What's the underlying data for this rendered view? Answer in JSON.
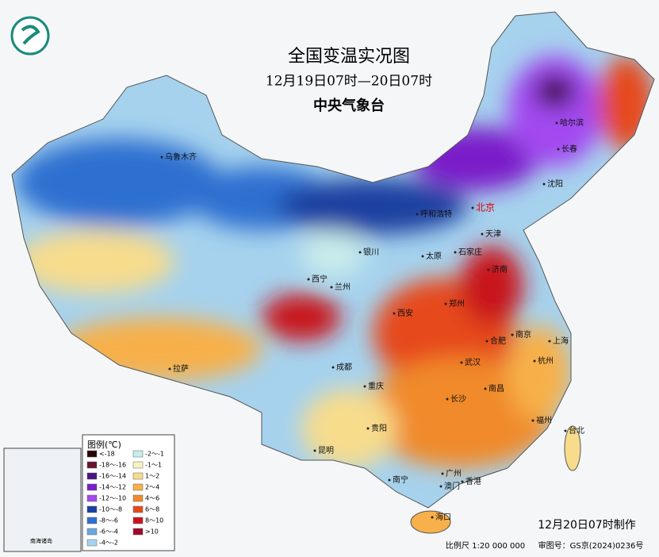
{
  "header": {
    "title": "全国变温实况图",
    "subtitle": "12月19日07时—20日07时",
    "issuer": "中央气象台"
  },
  "legend": {
    "title": "图例(℃)",
    "items": [
      {
        "label": "<-18",
        "color": "#2a0505"
      },
      {
        "label": "-18～-16",
        "color": "#6a1030"
      },
      {
        "label": "-16～-14",
        "color": "#4a1580"
      },
      {
        "label": "-14～-12",
        "color": "#7a1fc9"
      },
      {
        "label": "-12～-10",
        "color": "#a24af0"
      },
      {
        "label": "-10～-8",
        "color": "#1a3fa0"
      },
      {
        "label": "-8～-6",
        "color": "#2f6fd0"
      },
      {
        "label": "-6～-4",
        "color": "#6aa6e0"
      },
      {
        "label": "-4～-2",
        "color": "#a6d2ee"
      },
      {
        "label": "-2～-1",
        "color": "#c8ecea"
      },
      {
        "label": "-1～1",
        "color": "#f5f3c2"
      },
      {
        "label": "1～2",
        "color": "#f7dc8c"
      },
      {
        "label": "2～4",
        "color": "#f7b04a"
      },
      {
        "label": "4～6",
        "color": "#f08a2a"
      },
      {
        "label": "6～8",
        "color": "#e64a1a"
      },
      {
        "label": "8～10",
        "color": "#c8141e"
      },
      {
        "label": ">10",
        "color": "#a00a28"
      }
    ]
  },
  "cities": [
    "乌鲁木齐",
    "呼和浩特",
    "北京",
    "天津",
    "石家庄",
    "太原",
    "银川",
    "西宁",
    "兰州",
    "济南",
    "郑州",
    "西安",
    "合肥",
    "南京",
    "上海",
    "杭州",
    "武汉",
    "成都",
    "重庆",
    "拉萨",
    "长沙",
    "南昌",
    "福州",
    "台北",
    "贵阳",
    "昆明",
    "南宁",
    "广州",
    "澳门",
    "香港",
    "海口",
    "沈阳",
    "长春",
    "哈尔滨"
  ],
  "footer": {
    "made_time": "12月20日07时制作",
    "scale": "比例尺 1:20 000 000",
    "review_no": "审图号：GS京(2024)0236号",
    "inset_caption": "南海诸岛"
  }
}
